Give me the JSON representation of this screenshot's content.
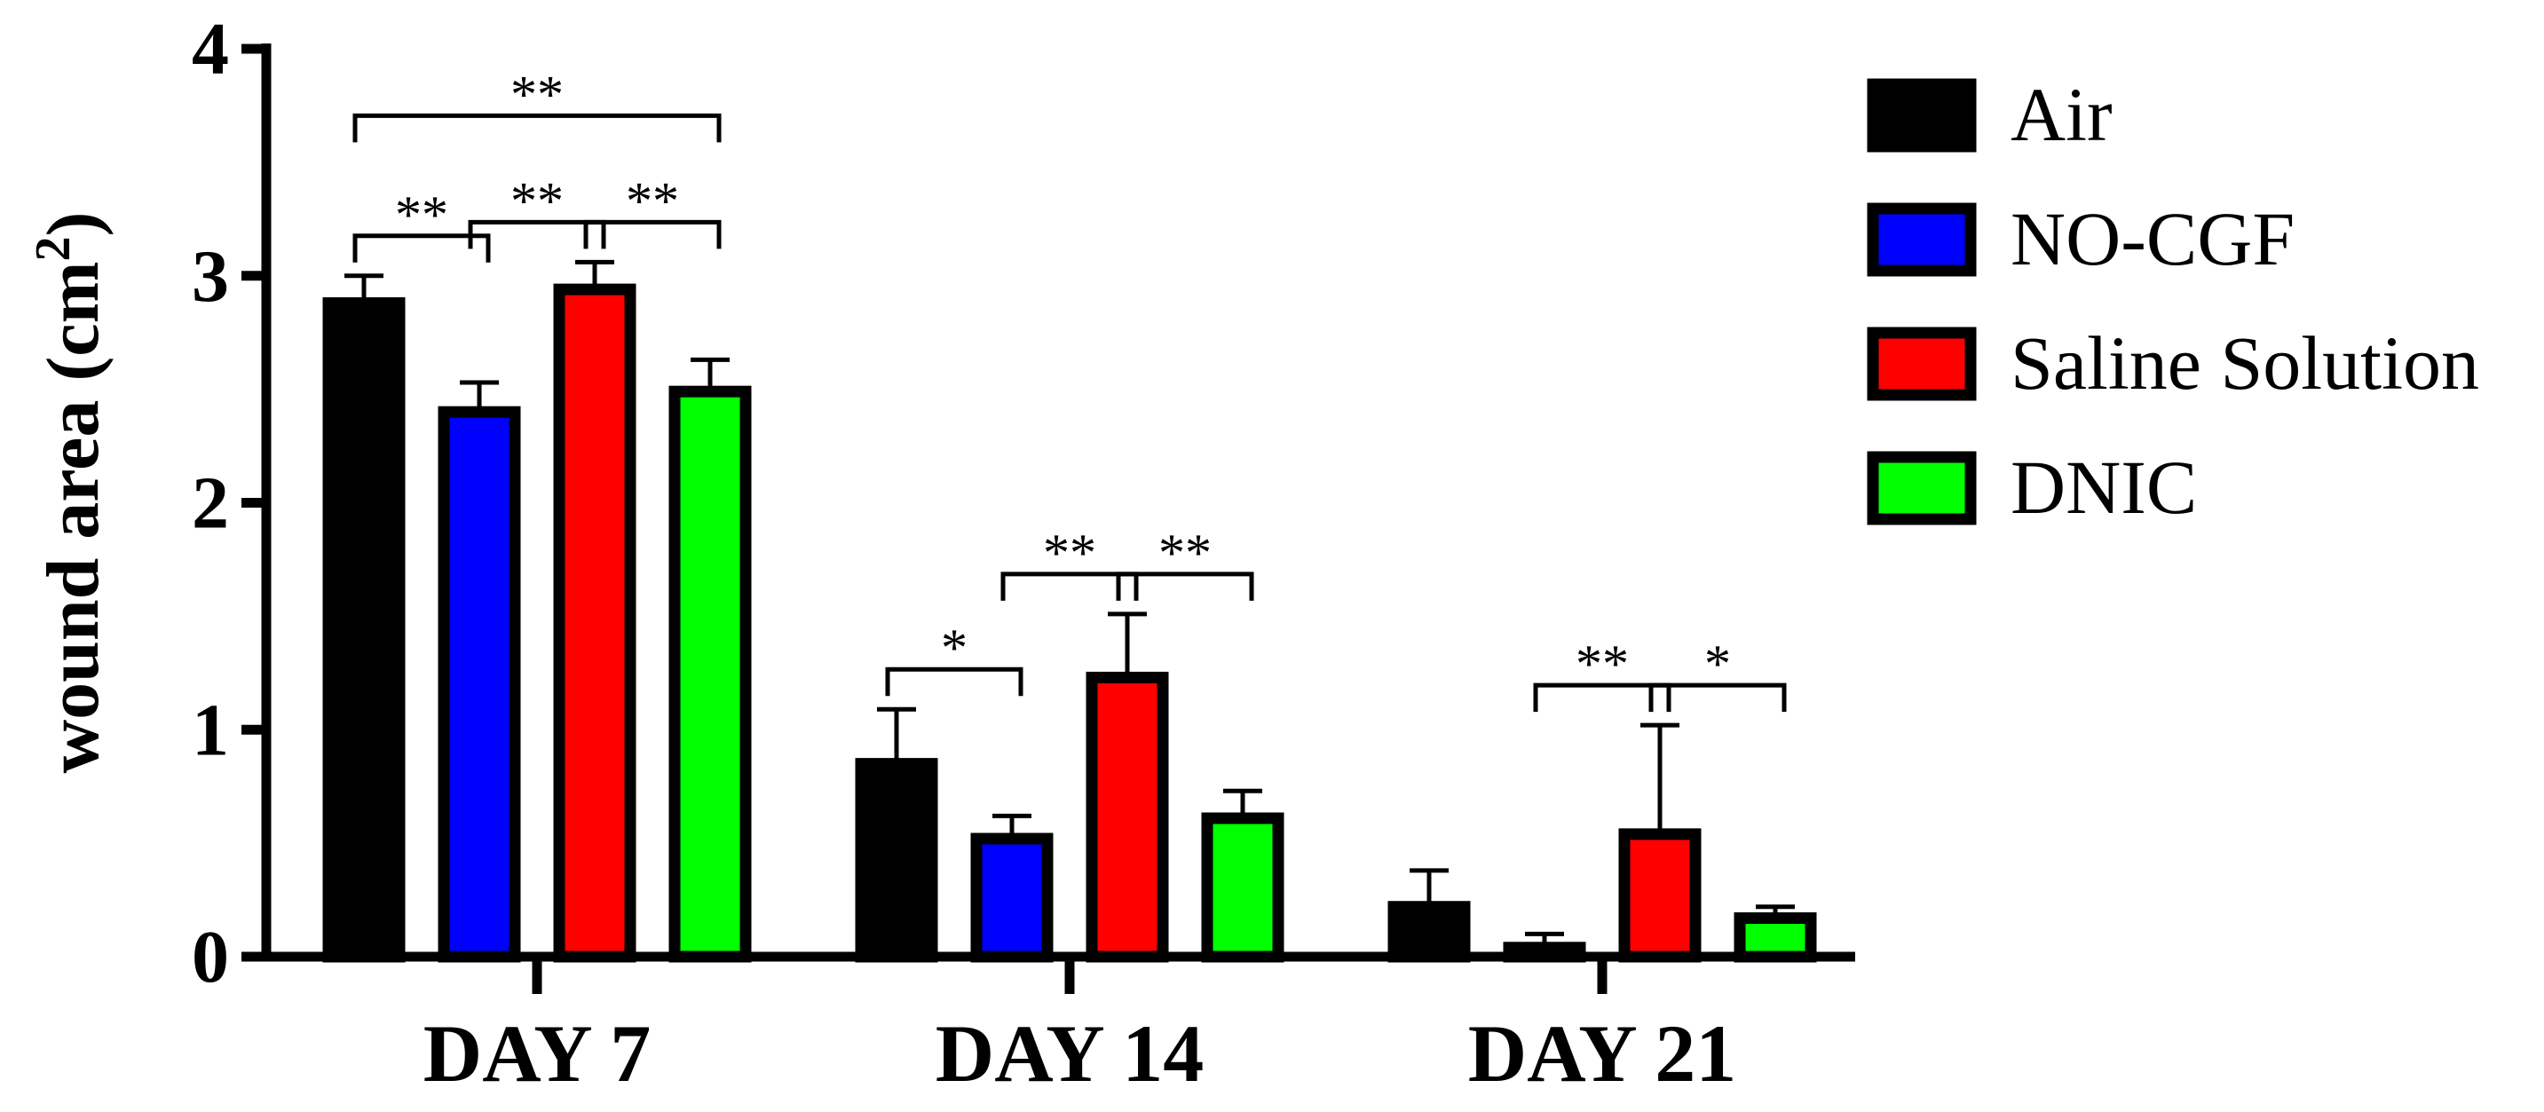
{
  "chart_data": {
    "type": "bar",
    "ylabel": "wound area (cm2)",
    "ylabel_main": "wound area (cm",
    "ylabel_sup": "2",
    "ylabel_close": ")",
    "ylim": [
      0,
      4
    ],
    "yticks": [
      "0",
      "1",
      "2",
      "3",
      "4"
    ],
    "categories": [
      "DAY 7",
      "DAY 14",
      "DAY 21"
    ],
    "legend_position": "right",
    "series": [
      {
        "name": "Air",
        "color": "#000000",
        "values": [
          2.88,
          0.85,
          0.22
        ],
        "errors": [
          0.12,
          0.24,
          0.16
        ]
      },
      {
        "name": "NO-CGF",
        "color": "#0000ff",
        "values": [
          2.4,
          0.52,
          0.04
        ],
        "errors": [
          0.13,
          0.1,
          0.06
        ]
      },
      {
        "name": "Saline Solution",
        "color": "#ff0000",
        "values": [
          2.94,
          1.23,
          0.54
        ],
        "errors": [
          0.12,
          0.28,
          0.48
        ]
      },
      {
        "name": "DNIC",
        "color": "#00ff00",
        "values": [
          2.49,
          0.61,
          0.17
        ],
        "errors": [
          0.14,
          0.12,
          0.05
        ]
      }
    ],
    "significance": [
      {
        "category": 0,
        "from": 0,
        "to": 1,
        "label": "**"
      },
      {
        "category": 0,
        "from": 1,
        "to": 2,
        "label": "**"
      },
      {
        "category": 0,
        "from": 2,
        "to": 3,
        "label": "**"
      },
      {
        "category": 0,
        "from": 0,
        "to": 3,
        "label": "**"
      },
      {
        "category": 1,
        "from": 0,
        "to": 1,
        "label": "*"
      },
      {
        "category": 1,
        "from": 1,
        "to": 2,
        "label": "**"
      },
      {
        "category": 1,
        "from": 2,
        "to": 3,
        "label": "**"
      },
      {
        "category": 2,
        "from": 1,
        "to": 2,
        "label": "**"
      },
      {
        "category": 2,
        "from": 2,
        "to": 3,
        "label": "*"
      }
    ]
  }
}
